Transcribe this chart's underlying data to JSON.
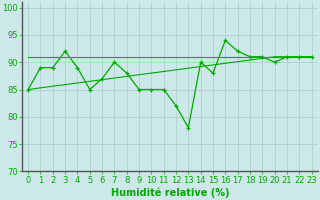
{
  "xlabel": "Humidité relative (%)",
  "bg_color": "#cce8e8",
  "grid_color": "#aacccc",
  "line_color": "#00aa00",
  "xlim": [
    -0.5,
    23.5
  ],
  "ylim": [
    70,
    101
  ],
  "yticks": [
    70,
    75,
    80,
    85,
    90,
    95,
    100
  ],
  "xticks": [
    0,
    1,
    2,
    3,
    4,
    5,
    6,
    7,
    8,
    9,
    10,
    11,
    12,
    13,
    14,
    15,
    16,
    17,
    18,
    19,
    20,
    21,
    22,
    23
  ],
  "y_main": [
    85,
    89,
    89,
    92,
    89,
    85,
    87,
    90,
    88,
    85,
    85,
    85,
    82,
    78,
    90,
    88,
    94,
    92,
    91,
    91,
    90,
    91,
    91,
    91
  ],
  "y_flat": [
    91,
    91,
    91,
    91,
    91,
    91,
    91,
    91,
    91,
    91,
    91,
    91,
    91,
    91,
    91,
    91,
    91,
    91,
    91,
    91,
    91,
    91,
    91,
    91
  ],
  "font_size_xlabel": 7,
  "font_size_ticks": 6
}
